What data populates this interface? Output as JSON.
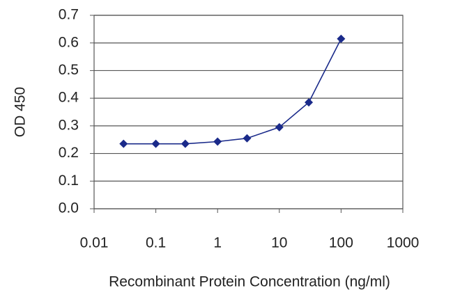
{
  "chart_data": {
    "type": "line",
    "xlabel": "Recombinant Protein Concentration (ng/ml)",
    "ylabel": "OD 450",
    "x": [
      0.03,
      0.1,
      0.3,
      1,
      3,
      10,
      30,
      100
    ],
    "values": [
      0.235,
      0.235,
      0.235,
      0.243,
      0.255,
      0.295,
      0.385,
      0.615
    ],
    "color": "#1a2a8a",
    "xlog": true,
    "xlim": [
      0.01,
      1000
    ],
    "xticks": [
      0.01,
      0.1,
      1,
      10,
      100,
      1000
    ],
    "ylim": [
      0,
      0.7
    ],
    "yticks": [
      {
        "value": 0,
        "label": "0.0"
      },
      0.1,
      0.2,
      0.3,
      0.4,
      0.5,
      0.6,
      0.7
    ],
    "grid": true
  }
}
